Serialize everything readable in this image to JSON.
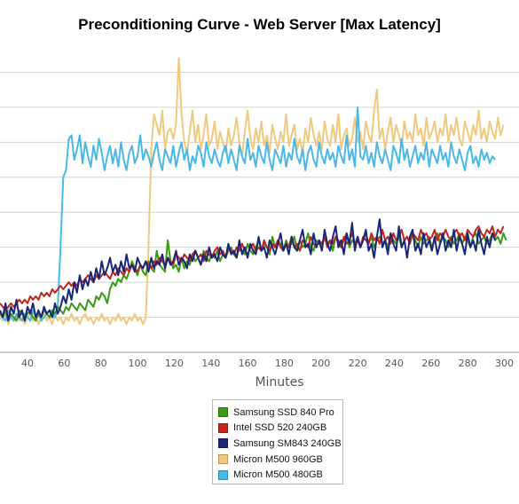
{
  "chart_data": {
    "type": "line",
    "title": "Preconditioning Curve - Web Server [Max Latency]",
    "xlabel": "Minutes",
    "ylabel": "",
    "xlim": [
      25,
      308
    ],
    "ylim": [
      0,
      9
    ],
    "x_ticks": [
      40,
      60,
      80,
      100,
      120,
      140,
      160,
      180,
      200,
      220,
      240,
      260,
      280,
      300
    ],
    "x_tick_labels": [
      "40",
      "60",
      "80",
      "100",
      "120",
      "140",
      "160",
      "180",
      "200",
      "220",
      "240",
      "260",
      "280",
      "300"
    ],
    "y_gridlines": [
      1,
      2,
      3,
      4,
      5,
      6,
      7,
      8
    ],
    "grid": true,
    "legend_position": "bottom-center",
    "x_start": 25,
    "x_step": 1.5,
    "series": [
      {
        "name": "Samsung SSD 840 Pro",
        "color": "#3a9a12",
        "values": [
          1.1,
          1.0,
          1.2,
          0.9,
          1.1,
          1.0,
          0.9,
          1.2,
          1.1,
          1.0,
          1.1,
          1.2,
          1.0,
          0.9,
          1.1,
          1.0,
          1.2,
          1.1,
          1.0,
          1.2,
          1.1,
          1.3,
          1.2,
          1.1,
          1.3,
          1.2,
          1.4,
          1.3,
          1.2,
          1.4,
          1.3,
          1.2,
          1.5,
          1.4,
          1.3,
          1.6,
          1.5,
          1.7,
          1.6,
          1.4,
          1.8,
          2.0,
          1.9,
          2.1,
          2.0,
          2.2,
          2.1,
          2.3,
          2.6,
          2.4,
          2.2,
          2.5,
          2.3,
          2.2,
          2.6,
          2.4,
          2.3,
          2.9,
          2.5,
          2.4,
          2.3,
          3.2,
          2.6,
          2.4,
          2.5,
          2.3,
          2.7,
          2.4,
          2.6,
          2.5,
          2.8,
          2.6,
          2.7,
          2.5,
          2.9,
          2.7,
          2.6,
          2.8,
          2.7,
          2.9,
          2.6,
          2.8,
          2.7,
          2.9,
          3.0,
          2.8,
          2.7,
          3.0,
          2.9,
          2.8,
          3.1,
          2.9,
          2.8,
          3.0,
          3.2,
          2.9,
          3.1,
          3.0,
          2.8,
          3.3,
          3.0,
          3.2,
          3.1,
          2.9,
          3.2,
          3.0,
          3.1,
          3.3,
          2.9,
          3.2,
          3.0,
          3.1,
          3.4,
          3.0,
          2.9,
          3.2,
          3.1,
          3.0,
          3.3,
          3.1,
          3.2,
          2.9,
          3.3,
          3.1,
          3.0,
          3.2,
          3.4,
          3.0,
          3.2,
          3.1,
          3.3,
          3.0,
          3.2,
          3.4,
          3.1,
          3.3,
          3.0,
          3.2,
          3.3,
          3.1,
          3.2,
          3.0,
          3.4,
          3.2,
          3.1,
          3.3,
          3.0,
          3.2,
          3.3,
          3.1,
          3.4,
          3.2,
          3.0,
          3.3,
          3.1,
          3.2,
          3.3,
          3.0,
          3.2,
          3.4,
          3.1,
          3.3,
          3.2,
          3.0,
          3.3,
          3.1,
          3.2,
          3.4,
          3.1,
          3.3,
          3.2,
          3.0,
          3.3,
          3.4,
          3.1,
          3.2,
          3.3,
          3.1,
          3.2,
          3.4,
          3.2,
          3.3,
          3.1,
          3.4,
          3.2
        ]
      },
      {
        "name": "Intel SSD 520 240GB",
        "color": "#c4241c",
        "values": [
          1.4,
          1.3,
          1.2,
          1.3,
          1.4,
          1.3,
          1.4,
          1.5,
          1.4,
          1.5,
          1.4,
          1.6,
          1.5,
          1.6,
          1.5,
          1.7,
          1.6,
          1.7,
          1.6,
          1.8,
          1.7,
          1.8,
          1.9,
          1.8,
          1.9,
          2.0,
          1.9,
          2.0,
          1.9,
          2.1,
          2.0,
          2.1,
          2.2,
          2.1,
          2.0,
          2.2,
          2.1,
          2.2,
          2.3,
          2.2,
          2.1,
          2.3,
          2.2,
          2.4,
          2.3,
          2.2,
          2.4,
          2.3,
          2.5,
          2.4,
          2.3,
          2.5,
          2.4,
          2.6,
          2.5,
          2.4,
          2.6,
          2.5,
          2.7,
          2.6,
          2.5,
          2.7,
          2.6,
          2.5,
          2.8,
          2.7,
          2.6,
          2.8,
          2.7,
          2.6,
          2.8,
          2.9,
          2.7,
          2.8,
          2.6,
          2.9,
          2.8,
          2.7,
          2.9,
          3.0,
          2.8,
          2.9,
          2.7,
          3.0,
          2.9,
          2.8,
          3.0,
          2.9,
          3.1,
          2.9,
          2.8,
          3.0,
          3.1,
          2.9,
          3.0,
          2.9,
          3.2,
          3.0,
          2.9,
          3.1,
          3.0,
          3.2,
          3.0,
          2.9,
          3.1,
          3.0,
          3.3,
          3.0,
          3.1,
          2.9,
          3.2,
          3.1,
          3.0,
          3.3,
          3.1,
          3.0,
          3.2,
          3.1,
          3.3,
          3.0,
          3.2,
          3.1,
          3.3,
          3.2,
          3.0,
          3.3,
          3.1,
          3.2,
          3.4,
          3.1,
          3.2,
          3.0,
          3.3,
          3.2,
          3.1,
          3.4,
          3.2,
          3.3,
          3.1,
          3.5,
          3.2,
          3.3,
          3.1,
          3.4,
          3.2,
          3.3,
          3.5,
          3.2,
          3.3,
          3.1,
          3.4,
          3.3,
          3.2,
          3.5,
          3.3,
          3.4,
          3.2,
          3.3,
          3.5,
          3.2,
          3.4,
          3.3,
          3.5,
          3.3,
          3.2,
          3.4,
          3.5,
          3.3,
          3.4,
          3.2,
          3.5,
          3.4,
          3.3,
          3.5,
          3.6,
          3.4,
          3.3,
          3.5,
          3.4,
          3.6,
          3.3,
          3.5,
          3.4,
          3.6
        ]
      },
      {
        "name": "Samsung SM843 240GB",
        "color": "#1a2678",
        "values": [
          1.2,
          1.0,
          1.4,
          0.9,
          1.3,
          1.1,
          1.5,
          1.0,
          1.2,
          0.9,
          1.3,
          1.1,
          1.4,
          1.0,
          1.2,
          1.0,
          1.3,
          1.1,
          1.2,
          1.0,
          1.4,
          1.1,
          1.3,
          1.6,
          1.4,
          1.8,
          1.5,
          2.0,
          1.7,
          2.2,
          1.8,
          2.1,
          1.9,
          2.3,
          2.0,
          2.4,
          2.1,
          2.6,
          2.2,
          2.4,
          2.7,
          2.3,
          2.5,
          2.2,
          2.6,
          2.3,
          2.8,
          2.4,
          2.5,
          2.3,
          2.7,
          2.5,
          2.4,
          2.6,
          2.3,
          2.7,
          2.4,
          2.6,
          2.5,
          2.8,
          2.4,
          2.7,
          2.5,
          2.6,
          2.9,
          2.5,
          2.7,
          2.6,
          2.4,
          2.8,
          2.6,
          2.9,
          2.7,
          2.5,
          2.8,
          2.6,
          3.0,
          2.7,
          2.8,
          2.6,
          3.0,
          2.8,
          2.7,
          3.1,
          2.8,
          2.9,
          2.7,
          3.2,
          2.8,
          3.0,
          2.7,
          3.1,
          2.9,
          2.8,
          3.3,
          2.9,
          3.0,
          2.7,
          3.2,
          3.0,
          2.8,
          3.1,
          3.4,
          2.9,
          3.1,
          2.8,
          3.3,
          3.0,
          2.9,
          3.2,
          3.5,
          3.0,
          3.1,
          2.8,
          3.4,
          3.0,
          3.2,
          2.9,
          3.5,
          3.1,
          2.9,
          3.3,
          3.6,
          3.0,
          3.2,
          2.8,
          3.4,
          3.1,
          3.7,
          2.9,
          3.3,
          3.0,
          3.2,
          3.5,
          2.9,
          3.1,
          2.7,
          3.3,
          3.8,
          3.0,
          3.2,
          2.8,
          3.4,
          3.1,
          2.9,
          3.6,
          3.0,
          3.2,
          2.7,
          3.3,
          3.5,
          2.9,
          3.1,
          2.8,
          3.4,
          3.0,
          3.2,
          2.9,
          3.3,
          2.8,
          3.1,
          3.4,
          2.9,
          3.2,
          3.0,
          3.5,
          2.9,
          3.3,
          3.1,
          2.8,
          3.4,
          3.0,
          3.2,
          2.9,
          3.5,
          3.1,
          2.8,
          3.3,
          3.0,
          3.4,
          3.2
        ]
      },
      {
        "name": "Micron M500 960GB",
        "color": "#f0c87e",
        "values": [
          1.0,
          0.9,
          1.1,
          0.8,
          1.0,
          0.9,
          1.1,
          0.9,
          1.0,
          0.8,
          1.0,
          1.1,
          0.9,
          1.0,
          0.8,
          1.0,
          1.1,
          0.9,
          1.0,
          0.8,
          1.1,
          0.9,
          1.0,
          0.8,
          1.0,
          0.9,
          1.1,
          0.9,
          1.0,
          0.8,
          1.0,
          1.1,
          0.9,
          1.0,
          0.8,
          1.0,
          0.9,
          1.1,
          0.9,
          1.0,
          0.8,
          1.0,
          0.9,
          1.1,
          0.9,
          1.0,
          0.8,
          1.0,
          0.9,
          1.1,
          0.9,
          1.0,
          0.8,
          1.0,
          3.0,
          5.8,
          6.8,
          6.5,
          6.2,
          6.9,
          5.8,
          6.3,
          6.4,
          6.1,
          6.5,
          8.4,
          6.8,
          6.0,
          5.7,
          6.3,
          6.9,
          6.0,
          6.5,
          5.8,
          6.2,
          6.8,
          5.9,
          6.1,
          6.6,
          5.8,
          6.3,
          6.0,
          5.7,
          6.4,
          5.9,
          6.2,
          6.7,
          6.0,
          5.6,
          6.3,
          6.9,
          6.1,
          5.8,
          6.4,
          6.0,
          6.6,
          5.9,
          6.2,
          5.7,
          6.5,
          6.1,
          5.8,
          6.3,
          6.0,
          6.8,
          5.9,
          6.2,
          6.5,
          5.8,
          6.1,
          5.7,
          6.4,
          6.0,
          6.7,
          6.2,
          5.9,
          6.3,
          5.8,
          6.6,
          6.1,
          5.9,
          6.5,
          6.0,
          6.8,
          5.8,
          6.2,
          6.4,
          5.9,
          6.1,
          6.7,
          6.0,
          6.3,
          5.8,
          6.6,
          6.2,
          6.0,
          6.9,
          7.5,
          6.1,
          6.4,
          5.8,
          6.3,
          6.7,
          6.0,
          6.5,
          6.2,
          5.9,
          6.6,
          6.1,
          6.3,
          6.0,
          6.8,
          6.2,
          6.4,
          5.9,
          6.7,
          6.1,
          6.3,
          6.6,
          6.0,
          6.4,
          6.2,
          6.8,
          6.0,
          6.5,
          6.2,
          6.7,
          6.1,
          5.9,
          6.6,
          6.3,
          6.0,
          6.5,
          6.2,
          6.9,
          6.1,
          6.4,
          6.0,
          6.6,
          6.3,
          6.1,
          6.7,
          6.2,
          6.5
        ]
      },
      {
        "name": "Micron M500 480GB",
        "color": "#4ab8e6",
        "values": [
          1.1,
          1.0,
          0.9,
          1.2,
          1.0,
          0.9,
          1.1,
          1.0,
          0.9,
          1.1,
          1.0,
          0.9,
          1.2,
          1.0,
          1.1,
          0.9,
          1.0,
          1.1,
          1.2,
          1.1,
          1.0,
          1.3,
          3.0,
          5.0,
          5.2,
          6.1,
          6.2,
          5.5,
          5.8,
          6.2,
          5.4,
          6.0,
          5.6,
          5.3,
          5.9,
          5.5,
          6.1,
          5.7,
          5.2,
          5.6,
          5.9,
          5.4,
          5.8,
          5.3,
          6.0,
          5.5,
          5.2,
          5.7,
          5.9,
          5.4,
          5.6,
          6.2,
          5.5,
          5.8,
          5.6,
          5.3,
          5.7,
          6.0,
          5.5,
          5.2,
          5.8,
          5.6,
          5.4,
          5.9,
          5.3,
          5.7,
          6.0,
          5.5,
          5.8,
          5.2,
          5.6,
          5.4,
          5.9,
          5.7,
          5.3,
          6.0,
          5.6,
          5.4,
          5.8,
          5.5,
          5.3,
          5.7,
          5.9,
          5.4,
          5.8,
          5.5,
          5.2,
          5.9,
          5.6,
          5.4,
          6.1,
          5.5,
          5.7,
          5.3,
          5.9,
          5.6,
          5.4,
          6.0,
          5.5,
          5.2,
          5.8,
          5.6,
          5.4,
          5.9,
          5.3,
          5.7,
          5.5,
          6.1,
          5.6,
          5.4,
          5.8,
          5.2,
          5.7,
          5.9,
          5.5,
          5.3,
          6.0,
          5.6,
          5.4,
          5.8,
          5.5,
          5.7,
          5.3,
          5.9,
          5.6,
          5.4,
          6.2,
          5.5,
          5.8,
          5.3,
          7.0,
          5.6,
          5.5,
          5.9,
          5.4,
          5.7,
          5.3,
          6.0,
          5.6,
          5.4,
          5.8,
          5.5,
          5.2,
          5.9,
          5.7,
          5.4,
          6.1,
          5.5,
          5.8,
          5.3,
          5.6,
          5.9,
          5.4,
          5.7,
          5.5,
          6.0,
          5.3,
          5.8,
          5.6,
          5.4,
          5.9,
          5.5,
          5.7,
          5.3,
          6.0,
          5.6,
          5.4,
          5.8,
          5.5,
          5.2,
          5.7,
          5.9,
          5.4,
          5.6,
          5.3,
          5.8,
          5.5,
          5.7,
          5.4,
          5.6,
          5.5
        ]
      }
    ]
  }
}
